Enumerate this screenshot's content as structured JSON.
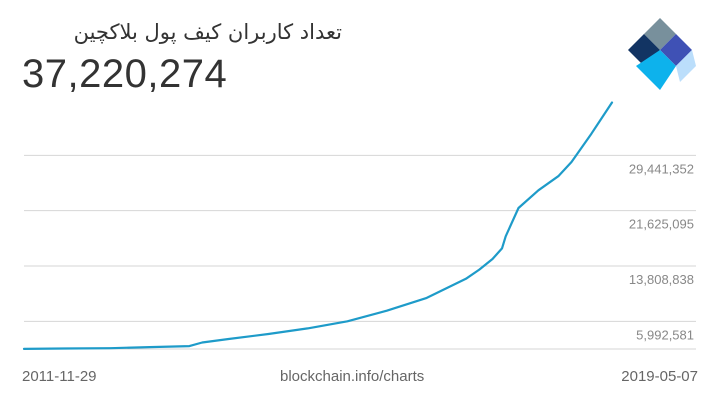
{
  "header": {
    "title": "تعداد کاربران کیف پول بلاکچین",
    "headline_value": "37,220,274"
  },
  "logo": {
    "icon": "blockchain-diamond-logo-icon",
    "colors": [
      "#78909c",
      "#123463",
      "#3f51b5",
      "#0db2ec",
      "#bbdefb"
    ]
  },
  "footer": {
    "start_date": "2011-11-29",
    "source": "blockchain.info/charts",
    "end_date": "2019-05-07"
  },
  "colors": {
    "line": "#1e9bc9",
    "grid": "#d6d6d6",
    "text": "#333333",
    "muted": "#888888"
  },
  "chart_data": {
    "type": "line",
    "title": "تعداد کاربران کیف پول بلاکچین",
    "xlabel": "",
    "ylabel": "",
    "xlim": [
      "2011-11-29",
      "2019-05-07"
    ],
    "ylim": [
      2084000,
      37258000
    ],
    "y_ticks": [
      5992581,
      13808838,
      21625095,
      29441352
    ],
    "y_tick_labels": [
      "5,992,581",
      "13,808,838",
      "21,625,095",
      "29,441,352"
    ],
    "grid": true,
    "legend": "none",
    "series": [
      {
        "x": [
          "2011-11-29",
          "2012-06-01",
          "2013-01-01",
          "2013-07-01",
          "2014-01-01",
          "2014-03-01",
          "2014-07-01",
          "2015-01-01",
          "2015-07-01",
          "2016-01-01",
          "2016-07-01",
          "2017-01-01",
          "2017-07-01",
          "2017-09-01",
          "2017-11-01",
          "2017-12-15",
          "2018-01-01",
          "2018-03-01",
          "2018-06-01",
          "2018-09-01",
          "2018-11-01",
          "2019-02-01",
          "2019-05-07"
        ],
        "y": [
          2100000,
          2150000,
          2200000,
          2350000,
          2500000,
          3000000,
          3500000,
          4200000,
          5000000,
          6000000,
          7500000,
          9300000,
          12000000,
          13300000,
          14800000,
          16300000,
          18000000,
          22000000,
          24500000,
          26500000,
          28500000,
          32500000,
          36900000
        ]
      }
    ]
  }
}
